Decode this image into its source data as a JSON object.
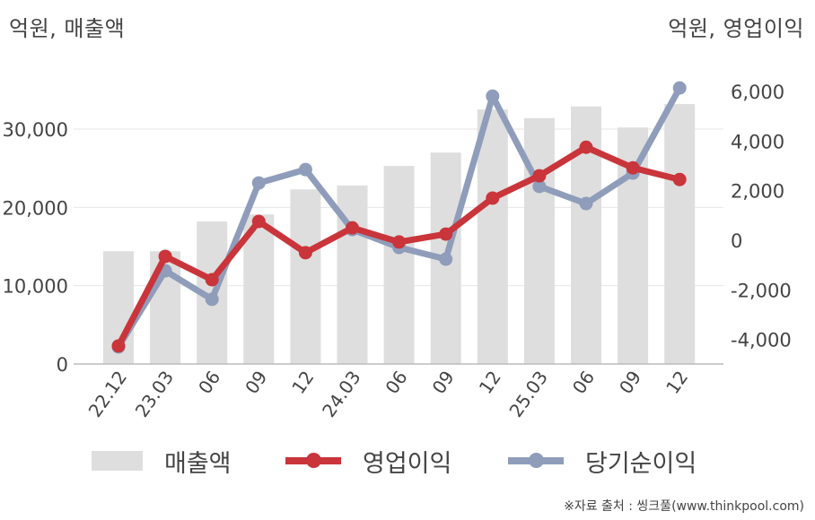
{
  "units": {
    "left": "억원, 매출액",
    "right": "억원, 영업이익"
  },
  "legend": {
    "sales": "매출액",
    "operating_profit": "영업이익",
    "net_income": "당기순이익"
  },
  "source": "※자료 출처 : 씽크풀(www.thinkpool.com)",
  "colors": {
    "sales": "#dedede",
    "operating_profit": "#c9353a",
    "net_income": "#8f9dbb",
    "grid": "#e6e6e6",
    "axis": "#bbbbbb"
  },
  "chart_data": {
    "type": "bar",
    "title": "",
    "categories": [
      "22.12",
      "23.03",
      "06",
      "09",
      "12",
      "24.03",
      "06",
      "09",
      "12",
      "25.03",
      "06",
      "09",
      "12"
    ],
    "series": [
      {
        "name": "매출액",
        "type": "bar",
        "axis": "left",
        "values": [
          14400,
          14400,
          18200,
          19100,
          22300,
          22800,
          25300,
          27000,
          32500,
          31400,
          32900,
          30200,
          33200
        ]
      },
      {
        "name": "영업이익",
        "type": "line",
        "axis": "right",
        "values": [
          -4260,
          -650,
          -1590,
          760,
          -500,
          500,
          -70,
          250,
          1700,
          2600,
          3750,
          2920,
          2450
        ]
      },
      {
        "name": "당기순이익",
        "type": "line",
        "axis": "right",
        "values": [
          -4300,
          -1230,
          -2380,
          2310,
          2850,
          430,
          -290,
          -760,
          5810,
          2170,
          1480,
          2710,
          6140
        ]
      }
    ],
    "left_axis": {
      "label": "억원, 매출액",
      "ticks": [
        0,
        10000,
        20000,
        30000
      ],
      "tick_labels": [
        "0",
        "10,000",
        "20,000",
        "30,000"
      ],
      "range": [
        0,
        30000
      ]
    },
    "right_axis": {
      "label": "억원, 영업이익",
      "ticks": [
        -4000,
        -2000,
        0,
        2000,
        4000,
        6000
      ],
      "tick_labels": [
        "-4,000",
        "-2,000",
        "0",
        "2,000",
        "4,000",
        "6,000"
      ],
      "range": [
        -4000,
        6000
      ]
    },
    "grid": true,
    "legend_position": "bottom"
  }
}
